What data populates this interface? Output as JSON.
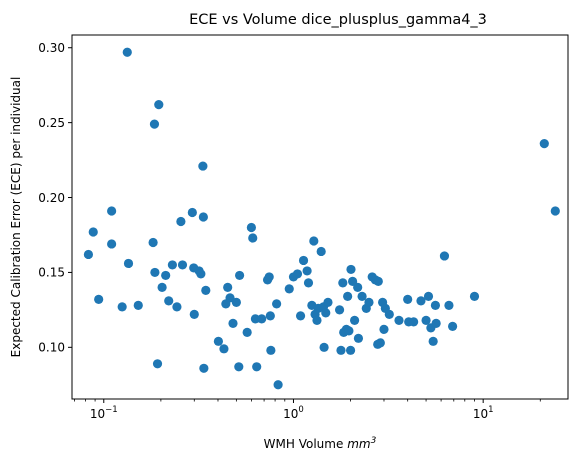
{
  "chart_data": {
    "type": "scatter",
    "title": "ECE vs Volume dice_plusplus_gamma4_3",
    "xlabel": "WMH Volume ",
    "xlabel_italic": "mm",
    "xlabel_sup": "3",
    "ylabel": "Expected Calibration Error (ECE) per individual",
    "xscale": "log",
    "xlim": [
      0.068,
      28
    ],
    "ylim": [
      0.0655,
      0.3085
    ],
    "xticks": [
      {
        "value": 0.1,
        "base": "10",
        "exp": "−1"
      },
      {
        "value": 1,
        "base": "10",
        "exp": "0"
      },
      {
        "value": 10,
        "base": "10",
        "exp": "1"
      }
    ],
    "yticks": [
      {
        "value": 0.1,
        "label": "0.10"
      },
      {
        "value": 0.15,
        "label": "0.15"
      },
      {
        "value": 0.2,
        "label": "0.20"
      },
      {
        "value": 0.25,
        "label": "0.25"
      },
      {
        "value": 0.3,
        "label": "0.30"
      }
    ],
    "grid": false,
    "marker_color": "#1f77b4",
    "points": [
      [
        0.083,
        0.162
      ],
      [
        0.088,
        0.177
      ],
      [
        0.094,
        0.132
      ],
      [
        0.11,
        0.191
      ],
      [
        0.11,
        0.169
      ],
      [
        0.125,
        0.127
      ],
      [
        0.133,
        0.297
      ],
      [
        0.135,
        0.156
      ],
      [
        0.152,
        0.128
      ],
      [
        0.182,
        0.17
      ],
      [
        0.185,
        0.249
      ],
      [
        0.186,
        0.15
      ],
      [
        0.192,
        0.089
      ],
      [
        0.195,
        0.262
      ],
      [
        0.203,
        0.14
      ],
      [
        0.212,
        0.148
      ],
      [
        0.22,
        0.131
      ],
      [
        0.23,
        0.155
      ],
      [
        0.243,
        0.127
      ],
      [
        0.255,
        0.184
      ],
      [
        0.26,
        0.155
      ],
      [
        0.293,
        0.19
      ],
      [
        0.298,
        0.153
      ],
      [
        0.3,
        0.122
      ],
      [
        0.318,
        0.151
      ],
      [
        0.325,
        0.149
      ],
      [
        0.333,
        0.221
      ],
      [
        0.335,
        0.187
      ],
      [
        0.337,
        0.086
      ],
      [
        0.345,
        0.138
      ],
      [
        0.402,
        0.104
      ],
      [
        0.43,
        0.099
      ],
      [
        0.44,
        0.129
      ],
      [
        0.45,
        0.14
      ],
      [
        0.463,
        0.133
      ],
      [
        0.48,
        0.116
      ],
      [
        0.5,
        0.13
      ],
      [
        0.515,
        0.087
      ],
      [
        0.52,
        0.148
      ],
      [
        0.57,
        0.11
      ],
      [
        0.6,
        0.18
      ],
      [
        0.61,
        0.173
      ],
      [
        0.63,
        0.119
      ],
      [
        0.64,
        0.087
      ],
      [
        0.68,
        0.119
      ],
      [
        0.73,
        0.145
      ],
      [
        0.745,
        0.147
      ],
      [
        0.755,
        0.121
      ],
      [
        0.76,
        0.098
      ],
      [
        0.815,
        0.129
      ],
      [
        0.83,
        0.075
      ],
      [
        0.95,
        0.139
      ],
      [
        1.0,
        0.147
      ],
      [
        1.05,
        0.149
      ],
      [
        1.09,
        0.121
      ],
      [
        1.13,
        0.158
      ],
      [
        1.18,
        0.151
      ],
      [
        1.2,
        0.143
      ],
      [
        1.25,
        0.128
      ],
      [
        1.28,
        0.171
      ],
      [
        1.3,
        0.122
      ],
      [
        1.33,
        0.118
      ],
      [
        1.35,
        0.126
      ],
      [
        1.4,
        0.164
      ],
      [
        1.44,
        0.127
      ],
      [
        1.45,
        0.1
      ],
      [
        1.48,
        0.123
      ],
      [
        1.52,
        0.13
      ],
      [
        1.75,
        0.125
      ],
      [
        1.78,
        0.098
      ],
      [
        1.82,
        0.143
      ],
      [
        1.84,
        0.11
      ],
      [
        1.9,
        0.112
      ],
      [
        1.93,
        0.134
      ],
      [
        1.96,
        0.111
      ],
      [
        2.0,
        0.098
      ],
      [
        2.01,
        0.152
      ],
      [
        2.05,
        0.144
      ],
      [
        2.1,
        0.118
      ],
      [
        2.18,
        0.14
      ],
      [
        2.2,
        0.106
      ],
      [
        2.3,
        0.134
      ],
      [
        2.42,
        0.126
      ],
      [
        2.5,
        0.13
      ],
      [
        2.6,
        0.147
      ],
      [
        2.7,
        0.145
      ],
      [
        2.78,
        0.102
      ],
      [
        2.8,
        0.144
      ],
      [
        2.87,
        0.103
      ],
      [
        2.95,
        0.13
      ],
      [
        3.0,
        0.112
      ],
      [
        3.05,
        0.126
      ],
      [
        3.2,
        0.122
      ],
      [
        3.6,
        0.118
      ],
      [
        4.0,
        0.132
      ],
      [
        4.05,
        0.117
      ],
      [
        4.3,
        0.117
      ],
      [
        4.7,
        0.131
      ],
      [
        5.0,
        0.118
      ],
      [
        5.15,
        0.134
      ],
      [
        5.3,
        0.113
      ],
      [
        5.45,
        0.104
      ],
      [
        5.6,
        0.128
      ],
      [
        5.65,
        0.116
      ],
      [
        6.25,
        0.161
      ],
      [
        6.6,
        0.128
      ],
      [
        6.9,
        0.114
      ],
      [
        9.0,
        0.134
      ],
      [
        21.0,
        0.236
      ],
      [
        24.0,
        0.191
      ]
    ]
  }
}
